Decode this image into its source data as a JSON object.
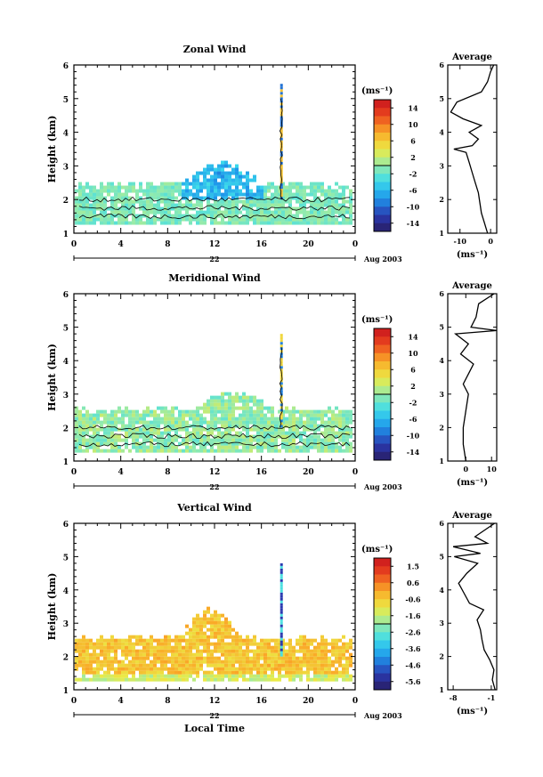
{
  "chart_data": [
    {
      "type": "heatmap",
      "title": "Zonal Wind",
      "ylabel": "Height (km)",
      "y_ticks": [
        "1",
        "2",
        "3",
        "4",
        "5",
        "6"
      ],
      "ylim": [
        1,
        6
      ],
      "x_ticks": [
        "0",
        "4",
        "8",
        "12",
        "16",
        "20",
        "0"
      ],
      "xlim": [
        0,
        24
      ],
      "day_label": "22",
      "date_label": "Aug 2003",
      "colorbar_unit": "(ms⁻¹)",
      "colorbar_ticks": [
        "14",
        "10",
        "6",
        "2",
        "-2",
        "-6",
        "-10",
        "-14"
      ],
      "colorbar_range": [
        -16,
        16
      ],
      "average": {
        "title": "Average",
        "xlabel": "(ms⁻¹)",
        "x_ticks": [
          "-10",
          "0"
        ],
        "xlim": [
          -14,
          2
        ],
        "profile": [
          [
            1.0,
            -1
          ],
          [
            1.3,
            -2
          ],
          [
            1.6,
            -3
          ],
          [
            1.9,
            -3.5
          ],
          [
            2.2,
            -4
          ],
          [
            2.5,
            -5
          ],
          [
            2.8,
            -6
          ],
          [
            3.1,
            -7
          ],
          [
            3.4,
            -8
          ],
          [
            3.5,
            -12
          ],
          [
            3.6,
            -6
          ],
          [
            3.8,
            -4
          ],
          [
            4.0,
            -7
          ],
          [
            4.2,
            -3
          ],
          [
            4.4,
            -9
          ],
          [
            4.6,
            -13
          ],
          [
            4.9,
            -11
          ],
          [
            5.2,
            -3
          ],
          [
            5.5,
            -1
          ],
          [
            5.8,
            0
          ],
          [
            6.0,
            1
          ]
        ]
      }
    },
    {
      "type": "heatmap",
      "title": "Meridional Wind",
      "ylabel": "Height (km)",
      "y_ticks": [
        "1",
        "2",
        "3",
        "4",
        "5",
        "6"
      ],
      "ylim": [
        1,
        6
      ],
      "x_ticks": [
        "0",
        "4",
        "8",
        "12",
        "16",
        "20",
        "0"
      ],
      "xlim": [
        0,
        24
      ],
      "day_label": "22",
      "date_label": "Aug 2003",
      "colorbar_unit": "(ms⁻¹)",
      "colorbar_ticks": [
        "14",
        "10",
        "6",
        "2",
        "-2",
        "-6",
        "-10",
        "-14"
      ],
      "colorbar_range": [
        -16,
        16
      ],
      "average": {
        "title": "Average",
        "xlabel": "(ms⁻¹)",
        "x_ticks": [
          "0",
          "10"
        ],
        "xlim": [
          -7,
          12
        ],
        "profile": [
          [
            1.0,
            0
          ],
          [
            1.5,
            -1
          ],
          [
            2.0,
            -1
          ],
          [
            2.5,
            0
          ],
          [
            3.0,
            1
          ],
          [
            3.3,
            -1
          ],
          [
            3.6,
            1
          ],
          [
            3.9,
            3
          ],
          [
            4.2,
            -2
          ],
          [
            4.5,
            1
          ],
          [
            4.8,
            -4
          ],
          [
            4.9,
            12
          ],
          [
            5.0,
            2
          ],
          [
            5.3,
            4
          ],
          [
            5.7,
            5
          ],
          [
            6.0,
            11
          ]
        ]
      }
    },
    {
      "type": "heatmap",
      "title": "Vertical Wind",
      "ylabel": "Height (km)",
      "xlabel": "Local Time",
      "y_ticks": [
        "1",
        "2",
        "3",
        "4",
        "5",
        "6"
      ],
      "ylim": [
        1,
        6
      ],
      "x_ticks": [
        "0",
        "4",
        "8",
        "12",
        "16",
        "20",
        "0"
      ],
      "xlim": [
        0,
        24
      ],
      "day_label": "22",
      "date_label": "Aug 2003",
      "colorbar_unit": "(ms⁻¹)",
      "colorbar_ticks": [
        "1.5",
        "0.6",
        "-0.6",
        "-1.6",
        "-2.6",
        "-3.6",
        "-4.6",
        "-5.6"
      ],
      "colorbar_range": [
        -6.1,
        2.0
      ],
      "average": {
        "title": "Average",
        "xlabel": "(ms⁻¹)",
        "x_ticks": [
          "-8",
          "-1"
        ],
        "xlim": [
          -9,
          0
        ],
        "profile": [
          [
            1.0,
            -0.3
          ],
          [
            1.3,
            -0.8
          ],
          [
            1.6,
            -0.5
          ],
          [
            1.9,
            -1.3
          ],
          [
            2.2,
            -2.3
          ],
          [
            2.5,
            -2.7
          ],
          [
            2.8,
            -3.0
          ],
          [
            3.1,
            -3.6
          ],
          [
            3.4,
            -2.4
          ],
          [
            3.6,
            -5.0
          ],
          [
            3.9,
            -6.0
          ],
          [
            4.2,
            -7.0
          ],
          [
            4.5,
            -5.5
          ],
          [
            4.8,
            -3.5
          ],
          [
            5.0,
            -7.8
          ],
          [
            5.1,
            -3.0
          ],
          [
            5.3,
            -8.0
          ],
          [
            5.4,
            -1.7
          ],
          [
            5.6,
            -4.0
          ],
          [
            5.8,
            -2.2
          ],
          [
            6.0,
            -0.4
          ]
        ]
      }
    }
  ]
}
